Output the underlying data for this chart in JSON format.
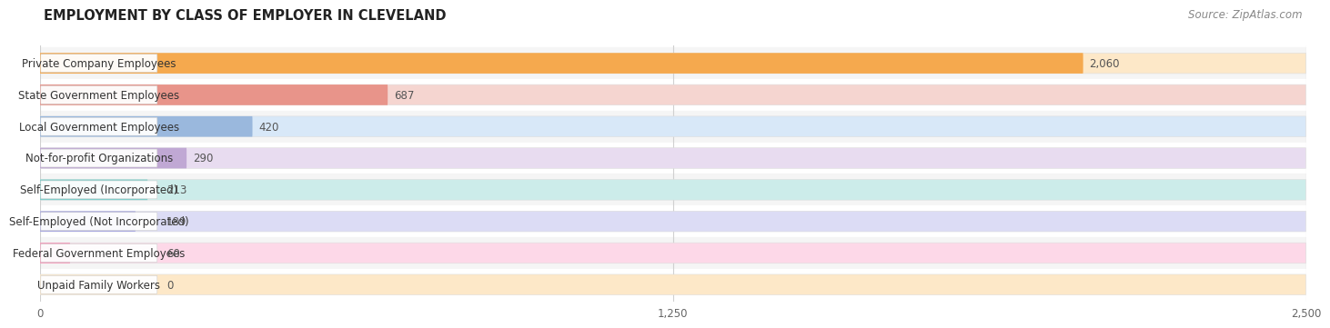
{
  "title": "EMPLOYMENT BY CLASS OF EMPLOYER IN CLEVELAND",
  "source": "Source: ZipAtlas.com",
  "categories": [
    "Private Company Employees",
    "State Government Employees",
    "Local Government Employees",
    "Not-for-profit Organizations",
    "Self-Employed (Incorporated)",
    "Self-Employed (Not Incorporated)",
    "Federal Government Employees",
    "Unpaid Family Workers"
  ],
  "values": [
    2060,
    687,
    420,
    290,
    213,
    189,
    60,
    0
  ],
  "bar_colors": [
    "#f5a94e",
    "#e8948a",
    "#9ab8dd",
    "#c0a8d4",
    "#7ececa",
    "#aaaae0",
    "#f497b8",
    "#f5c98a"
  ],
  "bar_bg_colors": [
    "#fde8c8",
    "#f5d5d0",
    "#d8e8f8",
    "#e8dcf0",
    "#ccecea",
    "#dcdcf5",
    "#fdd8e8",
    "#fde8c8"
  ],
  "row_bg_colors": [
    "#f5f5f5",
    "#ffffff",
    "#f5f5f5",
    "#ffffff",
    "#f5f5f5",
    "#ffffff",
    "#f5f5f5",
    "#ffffff"
  ],
  "xlim": [
    0,
    2500
  ],
  "xticks": [
    0,
    1250,
    2500
  ],
  "title_fontsize": 10.5,
  "source_fontsize": 8.5,
  "label_fontsize": 8.5,
  "value_fontsize": 8.5,
  "background_color": "#f0f0f0"
}
